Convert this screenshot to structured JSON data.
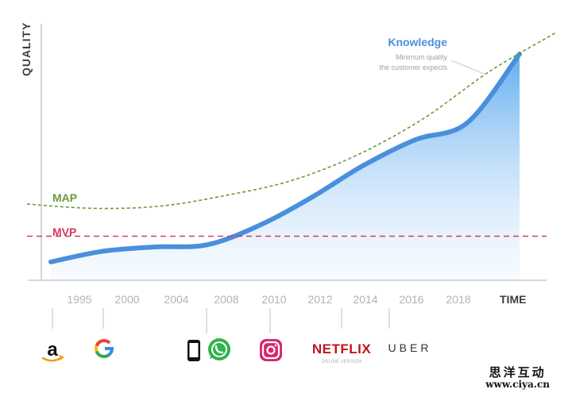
{
  "chart_data": {
    "type": "line",
    "title": "",
    "ylabel": "QUALITY",
    "xlabel": "TIME",
    "x_tick_labels": [
      "1995",
      "2000",
      "2004",
      "2008",
      "2010",
      "2012",
      "2014",
      "2016",
      "2018"
    ],
    "series": [
      {
        "name": "Knowledge",
        "style": "filled-area",
        "values": [
          3,
          8,
          10,
          11,
          20,
          33,
          48,
          60,
          68,
          100
        ]
      },
      {
        "name": "MAP",
        "style": "dashed",
        "values": [
          30,
          28,
          29,
          34,
          41,
          53,
          70,
          92,
          110
        ]
      },
      {
        "name": "MVP",
        "style": "dashed-flat",
        "values": [
          15,
          15
        ]
      }
    ],
    "annotation": {
      "title": "Knowledge",
      "line1": "Minimum quality",
      "line2": "the customer expects"
    },
    "colors": {
      "knowledge": "#4a8fdc",
      "map": "#6b9a3a",
      "mvp": "#d63c5e",
      "axis": "#d3d6da",
      "tick": "#b0b4b8"
    }
  },
  "timeline": {
    "logos": [
      {
        "name": "amazon",
        "glyph": "a"
      },
      {
        "name": "google",
        "glyph": "G"
      },
      {
        "name": "phone",
        "glyph": ""
      },
      {
        "name": "whatsapp",
        "glyph": ""
      },
      {
        "name": "instagram",
        "glyph": ""
      },
      {
        "name": "netflix",
        "text": "NETFLIX",
        "sub": "ONLINE VERSION"
      },
      {
        "name": "uber",
        "text": "UBER"
      }
    ]
  },
  "watermark": {
    "name": "思洋互动",
    "url": "www.ciya.cn"
  }
}
